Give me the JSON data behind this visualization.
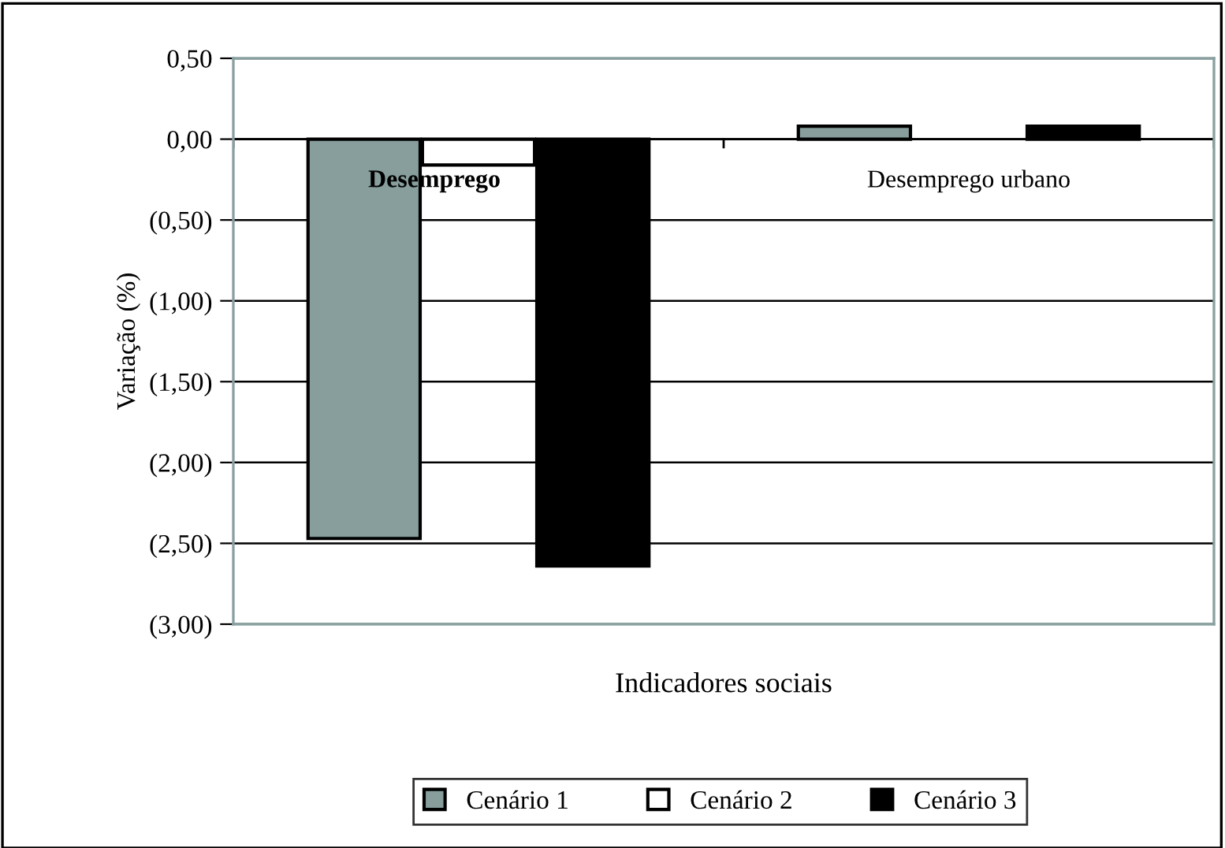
{
  "chart_data": {
    "type": "bar",
    "xlabel": "Indicadores sociais",
    "ylabel": "Variação (%)",
    "categories": [
      "Desemprego",
      "Desemprego urbano"
    ],
    "series": [
      {
        "name": "Cenário 1",
        "color": "#879e9d",
        "values": [
          -2.47,
          0.08
        ]
      },
      {
        "name": "Cenário 2",
        "color": "#ffffff",
        "values": [
          -0.16,
          null
        ]
      },
      {
        "name": "Cenário 3",
        "color": "#000000",
        "values": [
          -2.64,
          0.08
        ]
      }
    ],
    "ylim": [
      -3,
      0.5
    ],
    "yticks": [
      {
        "value": 0.5,
        "label": "0,50"
      },
      {
        "value": 0,
        "label": "0,00"
      },
      {
        "value": -0.5,
        "label": "(0,50)"
      },
      {
        "value": -1,
        "label": "(1,00)"
      },
      {
        "value": -1.5,
        "label": "(1,50)"
      },
      {
        "value": -2,
        "label": "(2,00)"
      },
      {
        "value": -2.5,
        "label": "(2,50)"
      },
      {
        "value": -3,
        "label": "(3,00)"
      }
    ],
    "grid": "y",
    "legend": "bottom"
  }
}
